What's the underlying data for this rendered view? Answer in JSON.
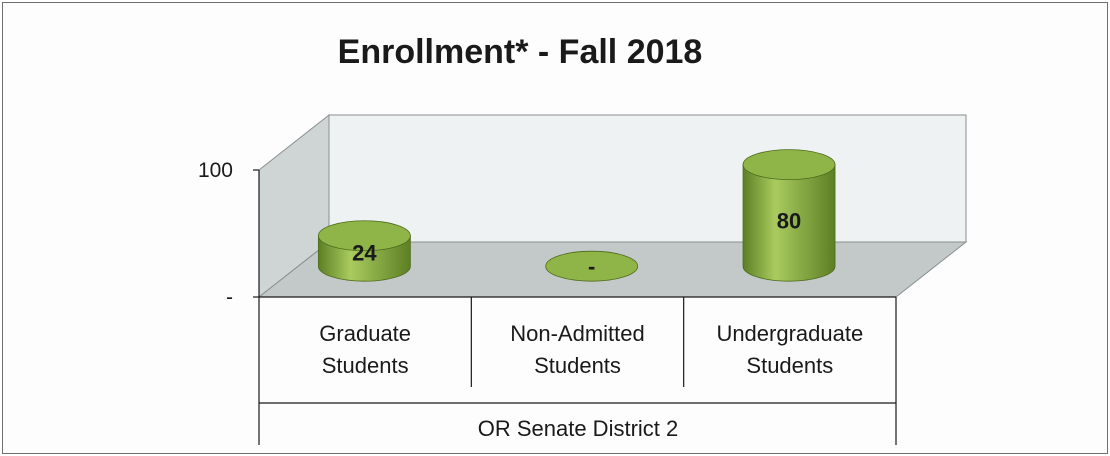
{
  "chart_data": {
    "type": "bar",
    "title": "Enrollment* - Fall 2018",
    "categories": [
      "Graduate Students",
      "Non-Admitted Students",
      "Undergraduate Students"
    ],
    "category_lines": [
      [
        "Graduate",
        "Students"
      ],
      [
        "Non-Admitted",
        "Students"
      ],
      [
        "Undergraduate",
        "Students"
      ]
    ],
    "group_label": "OR Senate District 2",
    "values": [
      24,
      0,
      80
    ],
    "data_labels": [
      "24",
      "-",
      "80"
    ],
    "y_ticks": [
      {
        "value": 0,
        "label": "-"
      },
      {
        "value": 100,
        "label": "100"
      }
    ],
    "ylim": [
      0,
      100
    ],
    "grid": false,
    "legend": "none",
    "colors": {
      "bar": "#7ea33a",
      "bar_dark": "#5d7f25",
      "bar_light": "#a9cb5e",
      "bar_top": "#8fb447",
      "wall_back": "#eef2f2",
      "wall_side": "#cfd4d4",
      "floor": "#c3c9c9",
      "axis": "#1a1a1a"
    }
  }
}
